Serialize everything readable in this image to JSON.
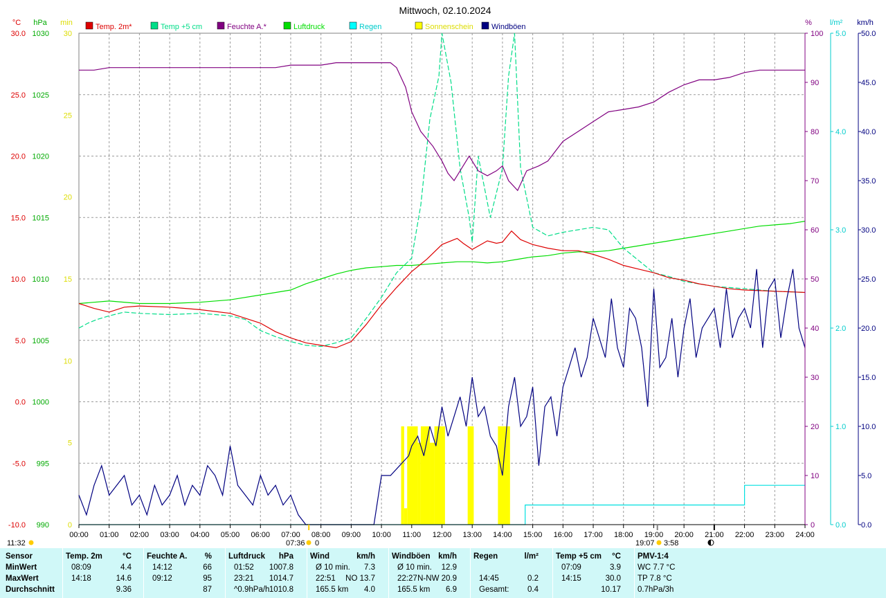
{
  "chart_data": {
    "type": "line",
    "title": "Mittwoch, 02.10.2024",
    "x_ticks": [
      "00:00",
      "01:00",
      "02:00",
      "03:00",
      "04:00",
      "05:00",
      "06:00",
      "07:00",
      "08:00",
      "09:00",
      "10:00",
      "11:00",
      "12:00",
      "13:00",
      "14:00",
      "15:00",
      "16:00",
      "17:00",
      "18:00",
      "19:00",
      "20:00",
      "21:00",
      "22:00",
      "23:00",
      "24:00"
    ],
    "axes": {
      "temp": {
        "unit": "°C",
        "range": [
          -10,
          30
        ],
        "ticks": [
          "30.0",
          "25.0",
          "20.0",
          "15.0",
          "10.0",
          "5.0",
          "0.0",
          "-5.0",
          "-10.0"
        ],
        "color": "#dd0000"
      },
      "pressure": {
        "unit": "hPa",
        "range": [
          990,
          1030
        ],
        "ticks": [
          "1030",
          "1025",
          "1020",
          "1015",
          "1010",
          "1005",
          "1000",
          "995",
          "990"
        ],
        "color": "#00aa00"
      },
      "sun": {
        "unit": "min",
        "range": [
          0,
          30
        ],
        "ticks": [
          "30",
          "25",
          "20",
          "15",
          "10",
          "5",
          "0"
        ],
        "color": "#dddd00"
      },
      "humidity": {
        "unit": "%",
        "range": [
          0,
          100
        ],
        "ticks": [
          "100",
          "90",
          "80",
          "70",
          "60",
          "50",
          "40",
          "30",
          "20",
          "10",
          "0"
        ],
        "color": "#800080"
      },
      "rain": {
        "unit": "l/m²",
        "range": [
          0,
          5
        ],
        "ticks": [
          "5.0",
          "4.0",
          "3.0",
          "2.0",
          "1.0",
          "0.0"
        ],
        "color": "#00cccc"
      },
      "wind": {
        "unit": "km/h",
        "range": [
          0,
          50
        ],
        "ticks": [
          "50.0",
          "45.0",
          "40.0",
          "35.0",
          "30.0",
          "25.0",
          "20.0",
          "15.0",
          "10.0",
          "5.0",
          "0.0"
        ],
        "color": "#000080"
      }
    },
    "legend": [
      {
        "name": "Temp. 2m*",
        "color": "#dd0000"
      },
      {
        "name": "Temp +5 cm",
        "color": "#00dd88"
      },
      {
        "name": "Feuchte A.*",
        "color": "#800080"
      },
      {
        "name": "Luftdruck",
        "color": "#00dd00"
      },
      {
        "name": "Regen",
        "color": "#00ffff"
      },
      {
        "name": "Sonnenschein",
        "color": "#ffff00"
      },
      {
        "name": "Windböen",
        "color": "#000080"
      }
    ],
    "series": [
      {
        "name": "Temp. 2m*",
        "axis": "temp",
        "color": "#dd0000",
        "dash": "",
        "x": [
          0,
          0.5,
          1,
          1.5,
          2,
          3,
          4,
          5,
          5.5,
          6,
          6.5,
          7,
          7.5,
          8,
          8.5,
          9,
          9.5,
          10,
          10.5,
          11,
          11.5,
          12,
          12.5,
          12.7,
          13,
          13.5,
          13.8,
          14,
          14.3,
          14.6,
          15,
          15.5,
          16,
          16.5,
          17,
          17.5,
          18,
          18.5,
          19,
          19.5,
          20,
          20.5,
          21,
          21.5,
          22,
          22.5,
          23,
          23.5,
          24
        ],
        "y": [
          8,
          7.6,
          7.3,
          7.7,
          7.8,
          7.7,
          7.5,
          7.2,
          6.8,
          6.4,
          5.7,
          5.2,
          4.8,
          4.6,
          4.4,
          4.9,
          6.3,
          7.9,
          9.3,
          10.6,
          11.6,
          12.8,
          13.3,
          12.9,
          12.4,
          13.1,
          12.9,
          13,
          13.9,
          13.2,
          12.8,
          12.5,
          12.3,
          12.3,
          12,
          11.6,
          11.1,
          10.8,
          10.5,
          10.1,
          9.9,
          9.6,
          9.4,
          9.2,
          9.1,
          9.05,
          9,
          8.95,
          8.9
        ]
      },
      {
        "name": "Temp +5 cm",
        "axis": "temp",
        "color": "#00dd88",
        "dash": "7,3",
        "x": [
          0,
          0.3,
          0.6,
          1,
          1.5,
          2,
          3,
          4,
          5,
          5.5,
          6,
          6.5,
          7,
          7.5,
          8,
          8.5,
          9,
          9.5,
          10,
          10.5,
          11,
          11.3,
          11.6,
          11.9,
          12,
          12.3,
          12.6,
          12.9,
          13,
          13.2,
          13.6,
          14,
          14.2,
          14.4,
          14.6,
          15,
          15.5,
          16,
          16.5,
          17,
          17.5,
          18,
          18.5,
          19,
          19.5,
          20,
          20.5,
          21,
          21.5,
          22,
          22.5,
          23,
          23.5,
          24
        ],
        "y": [
          6,
          6.4,
          6.7,
          7,
          7.3,
          7.2,
          7.1,
          7.2,
          7.0,
          6.7,
          5.8,
          5.3,
          4.9,
          4.6,
          4.5,
          4.8,
          5.2,
          6.8,
          8.5,
          10.5,
          11.7,
          16,
          23,
          26.5,
          30,
          26,
          19,
          15,
          13,
          20,
          15,
          19,
          26.5,
          30,
          19,
          14.2,
          13.5,
          13.8,
          14,
          14.2,
          14,
          12.5,
          11.5,
          10.5,
          10.2,
          9.8,
          9.6,
          9.4,
          9.3,
          9.2,
          9.1,
          9.0,
          8.95,
          8.9
        ]
      },
      {
        "name": "Feuchte A.*",
        "axis": "humidity",
        "color": "#800080",
        "dash": "",
        "x": [
          0,
          0.5,
          1,
          2,
          3,
          4,
          5,
          6,
          6.5,
          7,
          7.5,
          8,
          8.5,
          9,
          9.5,
          10,
          10.3,
          10.5,
          10.8,
          11,
          11.3,
          11.7,
          12,
          12.2,
          12.4,
          12.7,
          12.9,
          13.2,
          13.5,
          13.8,
          14,
          14.2,
          14.5,
          14.8,
          15.2,
          15.5,
          16,
          16.5,
          17,
          17.5,
          18,
          18.5,
          19,
          19.5,
          20,
          20.5,
          21,
          21.5,
          22,
          22.5,
          23,
          23.5,
          24
        ],
        "y": [
          92.5,
          92.5,
          93,
          93,
          93,
          93,
          93,
          93,
          93,
          93.5,
          93.5,
          93.5,
          94,
          94,
          94,
          94,
          94,
          93,
          89,
          84,
          80,
          77,
          74,
          71.5,
          70,
          73,
          75,
          72,
          71,
          72,
          73,
          70,
          68,
          72,
          73,
          74,
          78,
          80,
          82,
          84,
          84.5,
          85,
          86,
          88,
          89.5,
          90.5,
          90.5,
          91,
          92,
          92.5,
          92.5,
          92.5,
          92.5
        ]
      },
      {
        "name": "Luftdruck",
        "axis": "pressure",
        "color": "#00dd00",
        "dash": "",
        "x": [
          0,
          1,
          2,
          3,
          4,
          5,
          6,
          7,
          7.5,
          8,
          8.5,
          9,
          9.5,
          10,
          10.5,
          11,
          11.5,
          12,
          12.5,
          13,
          13.5,
          14,
          14.5,
          15,
          15.5,
          16,
          16.5,
          17,
          17.5,
          18,
          18.5,
          19,
          19.5,
          20,
          20.5,
          21,
          21.5,
          22,
          22.5,
          23,
          23.5,
          24
        ],
        "y": [
          1008.0,
          1008.2,
          1008.0,
          1008.0,
          1008.1,
          1008.3,
          1008.7,
          1009.1,
          1009.6,
          1010.0,
          1010.4,
          1010.7,
          1010.9,
          1011.0,
          1011.1,
          1011.1,
          1011.2,
          1011.3,
          1011.4,
          1011.4,
          1011.3,
          1011.4,
          1011.6,
          1011.8,
          1011.9,
          1012.1,
          1012.2,
          1012.2,
          1012.3,
          1012.5,
          1012.7,
          1012.9,
          1013.1,
          1013.3,
          1013.5,
          1013.7,
          1013.9,
          1014.1,
          1014.3,
          1014.4,
          1014.5,
          1014.7
        ]
      },
      {
        "name": "Windböen",
        "axis": "wind",
        "color": "#000080",
        "dash": "",
        "x": [
          0,
          0.25,
          0.5,
          0.75,
          1,
          1.25,
          1.5,
          1.75,
          2,
          2.25,
          2.5,
          2.75,
          3,
          3.25,
          3.5,
          3.75,
          4,
          4.25,
          4.5,
          4.75,
          5,
          5.25,
          5.5,
          5.75,
          6,
          6.25,
          6.5,
          6.75,
          7,
          7.25,
          7.5,
          9.75,
          10,
          10.3,
          10.6,
          10.9,
          11,
          11.2,
          11.4,
          11.6,
          11.8,
          12,
          12.2,
          12.4,
          12.6,
          12.8,
          13,
          13.2,
          13.4,
          13.6,
          13.8,
          14,
          14.2,
          14.4,
          14.6,
          14.8,
          15,
          15.2,
          15.4,
          15.6,
          15.8,
          16,
          16.2,
          16.4,
          16.6,
          16.8,
          17,
          17.2,
          17.4,
          17.6,
          17.8,
          18,
          18.2,
          18.4,
          18.6,
          18.8,
          19,
          19.2,
          19.4,
          19.6,
          19.8,
          20,
          20.2,
          20.4,
          20.6,
          20.8,
          21,
          21.2,
          21.4,
          21.6,
          21.8,
          22,
          22.2,
          22.4,
          22.6,
          22.8,
          23,
          23.2,
          23.4,
          23.6,
          23.8,
          24
        ],
        "y": [
          3,
          1,
          4,
          6,
          3,
          4,
          5,
          2,
          3,
          1,
          4,
          2,
          3,
          5,
          2,
          4,
          3,
          6,
          5,
          3,
          8,
          4,
          3,
          2,
          5,
          3,
          4,
          2,
          3,
          1,
          0,
          0,
          5,
          5,
          6,
          7,
          8,
          9,
          7,
          10,
          8,
          12,
          9,
          11,
          13,
          10,
          15,
          11,
          12,
          9,
          8,
          5,
          12,
          15,
          10,
          11,
          14,
          6,
          12,
          13,
          9,
          14,
          16,
          18,
          15,
          17,
          21,
          19,
          17,
          23,
          18,
          16,
          22,
          21,
          18,
          12,
          24,
          16,
          17,
          21,
          15,
          20,
          23,
          17,
          20,
          21,
          22,
          18,
          24,
          19,
          21,
          22,
          20,
          26,
          18,
          24,
          25,
          19,
          23,
          26,
          20,
          18
        ]
      }
    ],
    "steps": [
      {
        "name": "Regen",
        "axis": "rain",
        "color": "#00e0e0",
        "x": [
          0,
          14.75,
          14.75,
          22,
          22,
          24
        ],
        "y": [
          0,
          0,
          0.2,
          0.2,
          0.4,
          0.4
        ]
      }
    ],
    "bars": {
      "name": "Sonnenschein",
      "axis": "sun",
      "color": "#ffff00",
      "items": [
        [
          10.65,
          10.75,
          6
        ],
        [
          10.75,
          10.85,
          1
        ],
        [
          10.85,
          11.2,
          6
        ],
        [
          11.2,
          11.3,
          5
        ],
        [
          11.3,
          11.6,
          6
        ],
        [
          11.6,
          11.75,
          5
        ],
        [
          11.75,
          12.1,
          6
        ],
        [
          12.85,
          13.05,
          6
        ],
        [
          13.85,
          14.25,
          6
        ]
      ]
    },
    "xlabel": "",
    "ylabel": ""
  },
  "markers": {
    "sunrise": "07:36",
    "sunrise_val": "0",
    "sunset": "19:07",
    "sunset_val": "3:58",
    "noon": "11:32"
  },
  "stats": {
    "headers": [
      {
        "label": "Sensor",
        "unit": ""
      },
      {
        "label": "Temp. 2m",
        "unit": "°C"
      },
      {
        "label": "Feuchte A.",
        "unit": "%"
      },
      {
        "label": "Luftdruck",
        "unit": "hPa"
      },
      {
        "label": "Wind",
        "unit": "km/h"
      },
      {
        "label": "Windböen",
        "unit": "km/h"
      },
      {
        "label": "Regen",
        "unit": "l/m²"
      },
      {
        "label": "Temp +5 cm",
        "unit": "°C"
      },
      {
        "label": "PMV-1:4",
        "unit": ""
      }
    ],
    "rows": [
      {
        "label": "MinWert",
        "cells": [
          [
            "08:09",
            "4.4"
          ],
          [
            "14:12",
            "66"
          ],
          [
            "01:52",
            "1007.8"
          ],
          [
            "Ø 10 min.",
            "7.3"
          ],
          [
            "Ø 10 min.",
            "12.9"
          ],
          [
            "",
            ""
          ],
          [
            "07:09",
            "3.9"
          ],
          [
            "WC 7.7 °C",
            ""
          ]
        ]
      },
      {
        "label": "MaxWert",
        "cells": [
          [
            "14:18",
            "14.6"
          ],
          [
            "09:12",
            "95"
          ],
          [
            "23:21",
            "1014.7"
          ],
          [
            "22:51",
            "NO 13.7"
          ],
          [
            "22:27",
            "N-NW 20.9"
          ],
          [
            "14:45",
            "0.2"
          ],
          [
            "14:15",
            "30.0"
          ],
          [
            "TP 7.8 °C",
            ""
          ]
        ]
      },
      {
        "label": "Durchschnitt",
        "cells": [
          [
            "",
            "9.36"
          ],
          [
            "",
            "87"
          ],
          [
            "^0.9hPa/h",
            "1010.8"
          ],
          [
            "165.5 km",
            "4.0"
          ],
          [
            "165.5 km",
            "6.9"
          ],
          [
            "Gesamt:",
            "0.4"
          ],
          [
            "",
            "10.17"
          ],
          [
            "0.7hPa/3h",
            ""
          ]
        ]
      }
    ]
  }
}
